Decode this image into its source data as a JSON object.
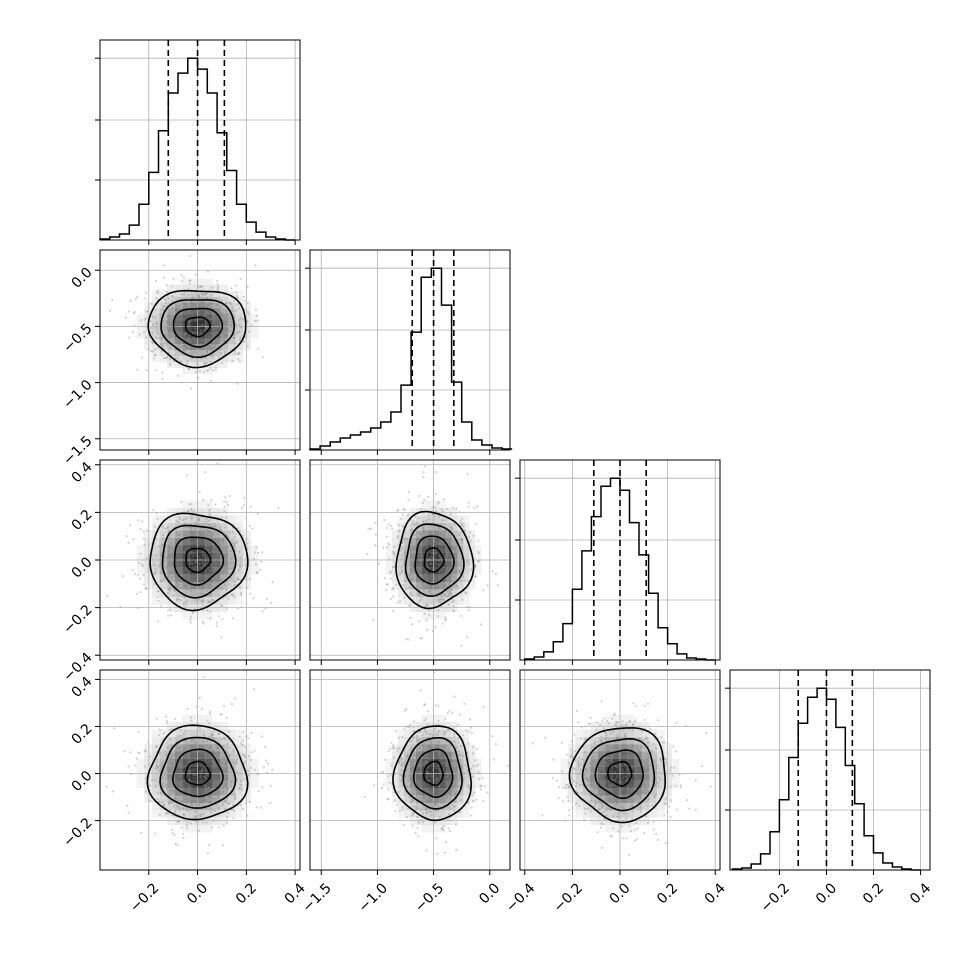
{
  "chart_data": {
    "type": "corner",
    "parameters": 4,
    "grid": true,
    "styles": {
      "axis_color": "#000000",
      "grid_color": "#b0b0b0",
      "line_color": "#000000",
      "scatter_color": "#808080"
    },
    "quantile_lines": "dashed",
    "x_ticks": [
      {
        "values": [
          -0.2,
          0.0,
          0.2,
          0.4
        ],
        "labels": [
          "−0.2",
          "0.0",
          "0.2",
          "0.4"
        ]
      },
      {
        "values": [
          -1.5,
          -1.0,
          -0.5,
          0.0
        ],
        "labels": [
          "−1.5",
          "−1.0",
          "−0.5",
          "0.0"
        ]
      },
      {
        "values": [
          -0.4,
          -0.2,
          0.0,
          0.2,
          0.4
        ],
        "labels": [
          "−0.4",
          "−0.2",
          "0.0",
          "0.2",
          "0.4"
        ]
      },
      {
        "values": [
          -0.2,
          0.0,
          0.2,
          0.4
        ],
        "labels": [
          "−0.2",
          "0.0",
          "0.2",
          "0.4"
        ]
      }
    ],
    "y_ticks": [
      null,
      {
        "values": [
          0.0,
          -0.5,
          -1.0,
          -1.5
        ],
        "labels": [
          "0.0",
          "−0.5",
          "−1.0",
          "−1.5"
        ]
      },
      {
        "values": [
          0.4,
          0.2,
          0.0,
          -0.2,
          -0.4
        ],
        "labels": [
          "0.4",
          "0.2",
          "0.0",
          "−0.2",
          "−0.4"
        ]
      },
      {
        "values": [
          0.4,
          0.2,
          0.0,
          -0.2
        ],
        "labels": [
          "0.4",
          "0.2",
          "0.0",
          "−0.2"
        ]
      }
    ],
    "ranges": [
      [
        -0.4,
        0.42
      ],
      [
        -1.6,
        0.18
      ],
      [
        -0.42,
        0.42
      ],
      [
        -0.41,
        0.44
      ]
    ],
    "marginals": [
      {
        "parameter": 1,
        "quantiles": [
          -0.12,
          0.0,
          0.11
        ],
        "bin_edges": [
          -0.4,
          -0.36,
          -0.32,
          -0.28,
          -0.24,
          -0.2,
          -0.16,
          -0.12,
          -0.08,
          -0.04,
          0.0,
          0.04,
          0.08,
          0.12,
          0.16,
          0.2,
          0.24,
          0.28,
          0.32,
          0.36,
          0.4
        ],
        "counts": [
          1,
          3,
          6,
          15,
          36,
          68,
          110,
          148,
          168,
          183,
          172,
          148,
          108,
          70,
          36,
          18,
          8,
          3,
          1,
          0
        ]
      },
      {
        "parameter": 2,
        "quantiles": [
          -0.69,
          -0.5,
          -0.32
        ],
        "bin_edges": [
          -1.6,
          -1.51,
          -1.42,
          -1.33,
          -1.24,
          -1.15,
          -1.06,
          -0.97,
          -0.88,
          -0.79,
          -0.7,
          -0.61,
          -0.52,
          -0.43,
          -0.34,
          -0.25,
          -0.16,
          -0.07,
          0.02,
          0.11,
          0.2
        ],
        "counts": [
          1,
          4,
          8,
          12,
          15,
          18,
          22,
          28,
          38,
          65,
          118,
          173,
          182,
          145,
          68,
          28,
          10,
          5,
          2,
          1
        ]
      },
      {
        "parameter": 3,
        "quantiles": [
          -0.11,
          0.0,
          0.11
        ],
        "bin_edges": [
          -0.4,
          -0.36,
          -0.32,
          -0.28,
          -0.24,
          -0.2,
          -0.16,
          -0.12,
          -0.08,
          -0.04,
          0.0,
          0.04,
          0.08,
          0.12,
          0.16,
          0.2,
          0.24,
          0.28,
          0.32,
          0.36,
          0.4
        ],
        "counts": [
          1,
          3,
          8,
          18,
          36,
          70,
          108,
          142,
          172,
          180,
          168,
          136,
          104,
          66,
          32,
          16,
          6,
          2,
          1,
          0
        ]
      },
      {
        "parameter": 4,
        "quantiles": [
          -0.12,
          0.0,
          0.11
        ],
        "bin_edges": [
          -0.4,
          -0.36,
          -0.32,
          -0.28,
          -0.24,
          -0.2,
          -0.16,
          -0.12,
          -0.08,
          -0.04,
          0.0,
          0.04,
          0.08,
          0.12,
          0.16,
          0.2,
          0.24,
          0.28,
          0.32,
          0.36,
          0.4
        ],
        "counts": [
          1,
          2,
          6,
          16,
          38,
          70,
          112,
          146,
          172,
          181,
          170,
          142,
          104,
          66,
          34,
          17,
          7,
          3,
          1,
          0
        ]
      }
    ],
    "pairs": [
      {
        "x_parameter": 1,
        "y_parameter": 2,
        "center": [
          0.0,
          -0.5
        ],
        "sigma": [
          0.1,
          0.17
        ]
      },
      {
        "x_parameter": 1,
        "y_parameter": 3,
        "center": [
          0.0,
          0.0
        ],
        "sigma": [
          0.1,
          0.1
        ]
      },
      {
        "x_parameter": 2,
        "y_parameter": 3,
        "center": [
          -0.5,
          0.0
        ],
        "sigma": [
          0.17,
          0.1
        ]
      },
      {
        "x_parameter": 1,
        "y_parameter": 4,
        "center": [
          0.0,
          0.0
        ],
        "sigma": [
          0.1,
          0.1
        ]
      },
      {
        "x_parameter": 2,
        "y_parameter": 4,
        "center": [
          -0.5,
          0.0
        ],
        "sigma": [
          0.17,
          0.1
        ]
      },
      {
        "x_parameter": 3,
        "y_parameter": 4,
        "center": [
          0.0,
          0.0
        ],
        "sigma": [
          0.1,
          0.1
        ]
      }
    ],
    "contour_sigma_levels": [
      0.5,
      1.0,
      1.5,
      2.0
    ]
  }
}
